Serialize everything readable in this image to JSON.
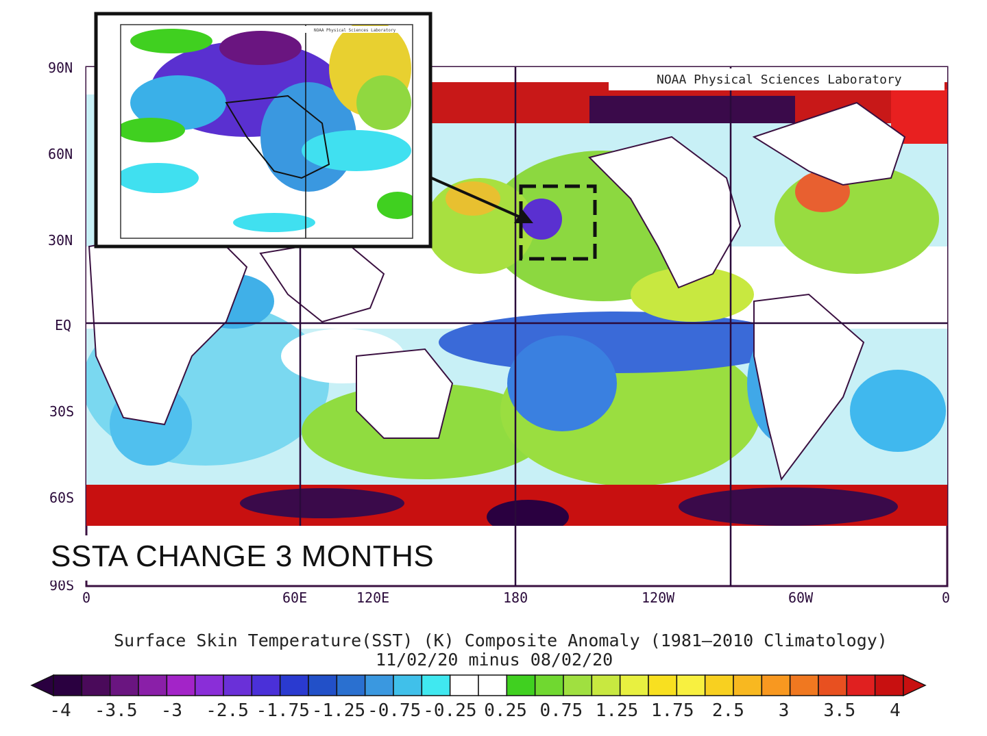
{
  "map": {
    "credit": "NOAA Physical Sciences Laboratory",
    "overlay_caption": "SSTA CHANGE 3 MONTHS",
    "lat_labels": [
      "90N",
      "60N",
      "30N",
      "EQ",
      "30S",
      "60S",
      "90S"
    ],
    "lon_labels": [
      "0",
      "60E",
      "120E",
      "180",
      "120W",
      "60W",
      "0"
    ],
    "title_line1": "Surface Skin Temperature(SST) (K) Composite Anomaly (1981–2010 Climatology)",
    "title_line2": "11/02/20 minus 08/02/20",
    "colorbar": {
      "labels": [
        "-4",
        "-3.5",
        "-3",
        "-2.5",
        "-1.75",
        "-1.25",
        "-0.75",
        "-0.25",
        "0.25",
        "0.75",
        "1.25",
        "1.75",
        "2.5",
        "3",
        "3.5",
        "4"
      ],
      "colors": [
        "#2a0040",
        "#4a0a5a",
        "#6a1580",
        "#8a1fa8",
        "#a324c8",
        "#8a2ed8",
        "#6a30d8",
        "#4a30d8",
        "#2a3ad0",
        "#2250c8",
        "#2a70d0",
        "#3a98e0",
        "#40c0ea",
        "#40e8f0",
        "#ffffff",
        "#ffffff",
        "#40d020",
        "#70d830",
        "#a0e040",
        "#c8e840",
        "#e8f040",
        "#f8e020",
        "#f8f040",
        "#f8d020",
        "#f8b820",
        "#f89820",
        "#f07820",
        "#e85020",
        "#e02020",
        "#c81010"
      ]
    }
  },
  "inset": {
    "credit": "NOAA Physical Sciences Laboratory"
  }
}
